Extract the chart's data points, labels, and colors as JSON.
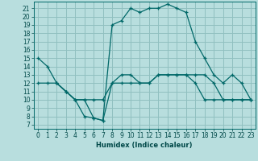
{
  "xlabel": "Humidex (Indice chaleur)",
  "background_color": "#b8dede",
  "grid_color": "#90c0c0",
  "line_color": "#006868",
  "xlim": [
    -0.5,
    23.5
  ],
  "ylim": [
    6.5,
    21.8
  ],
  "yticks": [
    7,
    8,
    9,
    10,
    11,
    12,
    13,
    14,
    15,
    16,
    17,
    18,
    19,
    20,
    21
  ],
  "xticks": [
    0,
    1,
    2,
    3,
    4,
    5,
    6,
    7,
    8,
    9,
    10,
    11,
    12,
    13,
    14,
    15,
    16,
    17,
    18,
    19,
    20,
    21,
    22,
    23
  ],
  "line1_x": [
    0,
    1,
    2,
    3,
    4,
    5,
    6,
    7,
    8,
    9,
    10,
    11,
    12,
    13,
    14,
    15,
    16,
    17,
    18,
    19,
    20,
    21,
    22,
    23
  ],
  "line1_y": [
    15,
    14,
    12,
    11,
    10,
    8,
    7.8,
    7.5,
    19,
    19.5,
    21,
    20.5,
    21,
    21,
    21.5,
    21,
    20.5,
    17,
    15,
    13,
    12,
    13,
    12,
    10
  ],
  "line2_x": [
    0,
    1,
    2,
    3,
    4,
    5,
    6,
    7,
    8,
    9,
    10,
    11,
    12,
    13,
    14,
    15,
    16,
    17,
    18,
    19,
    20,
    21,
    22,
    23
  ],
  "line2_y": [
    12,
    12,
    12,
    11,
    10,
    10,
    10,
    10,
    12,
    12,
    12,
    12,
    12,
    13,
    13,
    13,
    13,
    13,
    13,
    12,
    10,
    10,
    10,
    10
  ],
  "line3_x": [
    2,
    3,
    4,
    5,
    6,
    7,
    8,
    9,
    10,
    11,
    12,
    13,
    14,
    15,
    16,
    17,
    18,
    19,
    20,
    21,
    22,
    23
  ],
  "line3_y": [
    12,
    11,
    10,
    10,
    7.8,
    7.5,
    12,
    13,
    13,
    12,
    12,
    13,
    13,
    13,
    13,
    12,
    10,
    10,
    10,
    10,
    10,
    10
  ]
}
